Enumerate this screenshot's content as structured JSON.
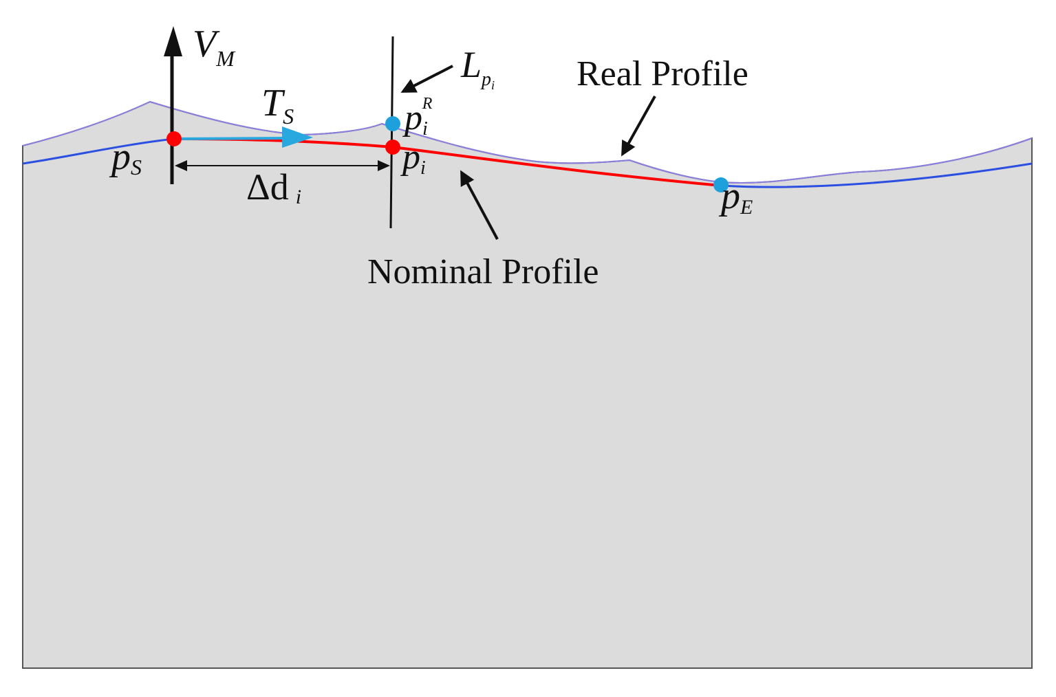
{
  "labels": {
    "velocity_main": "V",
    "velocity_sub": "M",
    "line_main": "L",
    "line_sub_main": "p",
    "line_sub_sub": "i",
    "real_profile": "Real Profile",
    "tangent_main": "T",
    "tangent_sub": "S",
    "real_point_main": "p",
    "real_point_sub": "i",
    "real_point_sup": "R",
    "start_point_main": "p",
    "start_point_sub": "S",
    "nominal_point_main": "p",
    "nominal_point_sub": "i",
    "distance_main": "Δd",
    "distance_sub": "i",
    "end_point_main": "p",
    "end_point_sub": "E",
    "nominal_profile": "Nominal Profile"
  },
  "colors": {
    "workpiece_fill": "#dcdcdc",
    "real_profile": "#8a7fe0",
    "nominal_profile": "#2b4fe0",
    "measured_segment": "#ff0000",
    "tangent_vector": "#29a8e0",
    "start_point": "#ff0000",
    "nominal_point": "#ff0000",
    "real_point": "#1ea0dc",
    "end_point": "#1ea0dc",
    "annotation": "#111111"
  }
}
